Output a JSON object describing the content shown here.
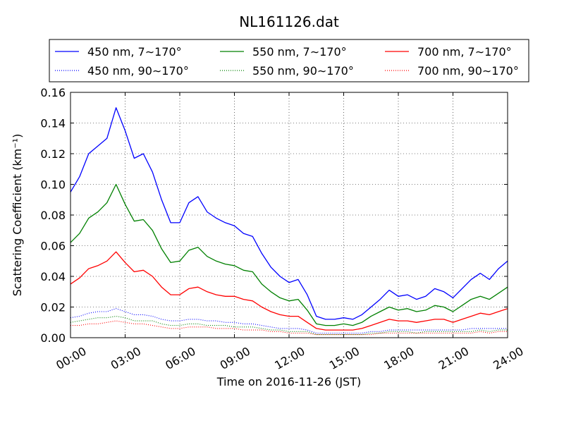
{
  "chart_data": {
    "type": "line",
    "title": "NL161126.dat",
    "xlabel": "Time on 2016-11-26 (JST)",
    "ylabel": "Scattering Coefficient (km⁻¹)",
    "xlim": [
      0,
      24
    ],
    "ylim": [
      0,
      0.16
    ],
    "x_ticks": [
      0,
      3,
      6,
      9,
      12,
      15,
      18,
      21,
      24
    ],
    "x_tick_labels": [
      "00:00",
      "03:00",
      "06:00",
      "09:00",
      "12:00",
      "15:00",
      "18:00",
      "21:00",
      "24:00"
    ],
    "y_ticks": [
      0,
      0.02,
      0.04,
      0.06,
      0.08,
      0.1,
      0.12,
      0.14,
      0.16
    ],
    "y_tick_labels": [
      "0.00",
      "0.02",
      "0.04",
      "0.06",
      "0.08",
      "0.10",
      "0.12",
      "0.14",
      "0.16"
    ],
    "grid": true,
    "legend": {
      "placement": "top",
      "columns": 3
    },
    "x": [
      0,
      0.5,
      1,
      1.5,
      2,
      2.5,
      3,
      3.5,
      4,
      4.5,
      5,
      5.5,
      6,
      6.5,
      7,
      7.5,
      8,
      8.5,
      9,
      9.5,
      10,
      10.5,
      11,
      11.5,
      12,
      12.5,
      13,
      13.5,
      14,
      14.5,
      15,
      15.5,
      16,
      16.5,
      17,
      17.5,
      18,
      18.5,
      19,
      19.5,
      20,
      20.5,
      21,
      21.5,
      22,
      22.5,
      23,
      23.5,
      24
    ],
    "series": [
      {
        "name": "450 nm, 7∼170°",
        "color": "#0000ff",
        "style": "solid",
        "values": [
          0.095,
          0.105,
          0.12,
          0.125,
          0.13,
          0.15,
          0.135,
          0.117,
          0.12,
          0.108,
          0.09,
          0.075,
          0.075,
          0.088,
          0.092,
          0.082,
          0.078,
          0.075,
          0.073,
          0.068,
          0.066,
          0.055,
          0.046,
          0.04,
          0.036,
          0.038,
          0.028,
          0.014,
          0.012,
          0.012,
          0.013,
          0.012,
          0.015,
          0.02,
          0.025,
          0.031,
          0.027,
          0.028,
          0.025,
          0.027,
          0.032,
          0.03,
          0.026,
          0.032,
          0.038,
          0.042,
          0.038,
          0.045,
          0.05
        ]
      },
      {
        "name": "450 nm, 90∼170°",
        "color": "#0000ff",
        "style": "dotted",
        "values": [
          0.013,
          0.014,
          0.016,
          0.017,
          0.017,
          0.019,
          0.017,
          0.015,
          0.015,
          0.014,
          0.012,
          0.011,
          0.011,
          0.012,
          0.012,
          0.011,
          0.011,
          0.01,
          0.01,
          0.009,
          0.009,
          0.008,
          0.007,
          0.006,
          0.006,
          0.006,
          0.005,
          0.003,
          0.003,
          0.003,
          0.003,
          0.003,
          0.003,
          0.004,
          0.004,
          0.005,
          0.005,
          0.005,
          0.005,
          0.005,
          0.005,
          0.005,
          0.005,
          0.005,
          0.006,
          0.006,
          0.006,
          0.006,
          0.006
        ]
      },
      {
        "name": "550 nm, 7∼170°",
        "color": "#008000",
        "style": "solid",
        "values": [
          0.062,
          0.068,
          0.078,
          0.082,
          0.088,
          0.1,
          0.087,
          0.076,
          0.077,
          0.07,
          0.058,
          0.049,
          0.05,
          0.057,
          0.059,
          0.053,
          0.05,
          0.048,
          0.047,
          0.044,
          0.043,
          0.035,
          0.03,
          0.026,
          0.024,
          0.025,
          0.018,
          0.009,
          0.008,
          0.008,
          0.009,
          0.008,
          0.01,
          0.014,
          0.017,
          0.02,
          0.018,
          0.019,
          0.017,
          0.018,
          0.021,
          0.02,
          0.017,
          0.021,
          0.025,
          0.027,
          0.025,
          0.029,
          0.033
        ]
      },
      {
        "name": "550 nm, 90∼170°",
        "color": "#008000",
        "style": "dotted",
        "values": [
          0.01,
          0.011,
          0.012,
          0.013,
          0.013,
          0.014,
          0.013,
          0.011,
          0.011,
          0.011,
          0.009,
          0.008,
          0.008,
          0.009,
          0.009,
          0.008,
          0.008,
          0.008,
          0.007,
          0.007,
          0.007,
          0.006,
          0.005,
          0.005,
          0.004,
          0.004,
          0.004,
          0.002,
          0.002,
          0.002,
          0.002,
          0.002,
          0.002,
          0.003,
          0.003,
          0.004,
          0.004,
          0.004,
          0.003,
          0.004,
          0.004,
          0.004,
          0.004,
          0.004,
          0.004,
          0.005,
          0.004,
          0.005,
          0.005
        ]
      },
      {
        "name": "700 nm, 7∼170°",
        "color": "#ff0000",
        "style": "solid",
        "values": [
          0.035,
          0.039,
          0.045,
          0.047,
          0.05,
          0.056,
          0.049,
          0.043,
          0.044,
          0.04,
          0.033,
          0.028,
          0.028,
          0.032,
          0.033,
          0.03,
          0.028,
          0.027,
          0.027,
          0.025,
          0.024,
          0.02,
          0.017,
          0.015,
          0.014,
          0.014,
          0.01,
          0.006,
          0.005,
          0.005,
          0.005,
          0.005,
          0.006,
          0.008,
          0.01,
          0.012,
          0.011,
          0.011,
          0.01,
          0.011,
          0.012,
          0.012,
          0.01,
          0.012,
          0.014,
          0.016,
          0.015,
          0.017,
          0.019
        ]
      },
      {
        "name": "700 nm, 90∼170°",
        "color": "#ff0000",
        "style": "dotted",
        "values": [
          0.008,
          0.008,
          0.009,
          0.009,
          0.01,
          0.011,
          0.01,
          0.009,
          0.009,
          0.008,
          0.007,
          0.006,
          0.006,
          0.007,
          0.007,
          0.007,
          0.006,
          0.006,
          0.006,
          0.005,
          0.005,
          0.005,
          0.004,
          0.004,
          0.003,
          0.003,
          0.003,
          0.002,
          0.002,
          0.002,
          0.002,
          0.002,
          0.002,
          0.002,
          0.003,
          0.003,
          0.003,
          0.003,
          0.003,
          0.003,
          0.003,
          0.003,
          0.003,
          0.003,
          0.003,
          0.004,
          0.003,
          0.004,
          0.004
        ]
      }
    ]
  }
}
